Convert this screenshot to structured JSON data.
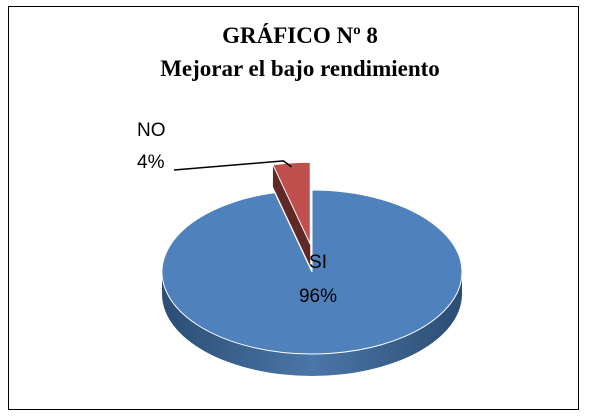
{
  "chart_data": {
    "type": "pie",
    "title": "GRÁFICO Nº 8",
    "subtitle": "Mejorar el bajo rendimiento",
    "categories": [
      "SI",
      "NO"
    ],
    "values": [
      96,
      4
    ],
    "value_labels": [
      "96%",
      "4%"
    ],
    "colors": [
      "#4f81bd",
      "#c0504d"
    ],
    "exploded": [
      false,
      true
    ]
  }
}
